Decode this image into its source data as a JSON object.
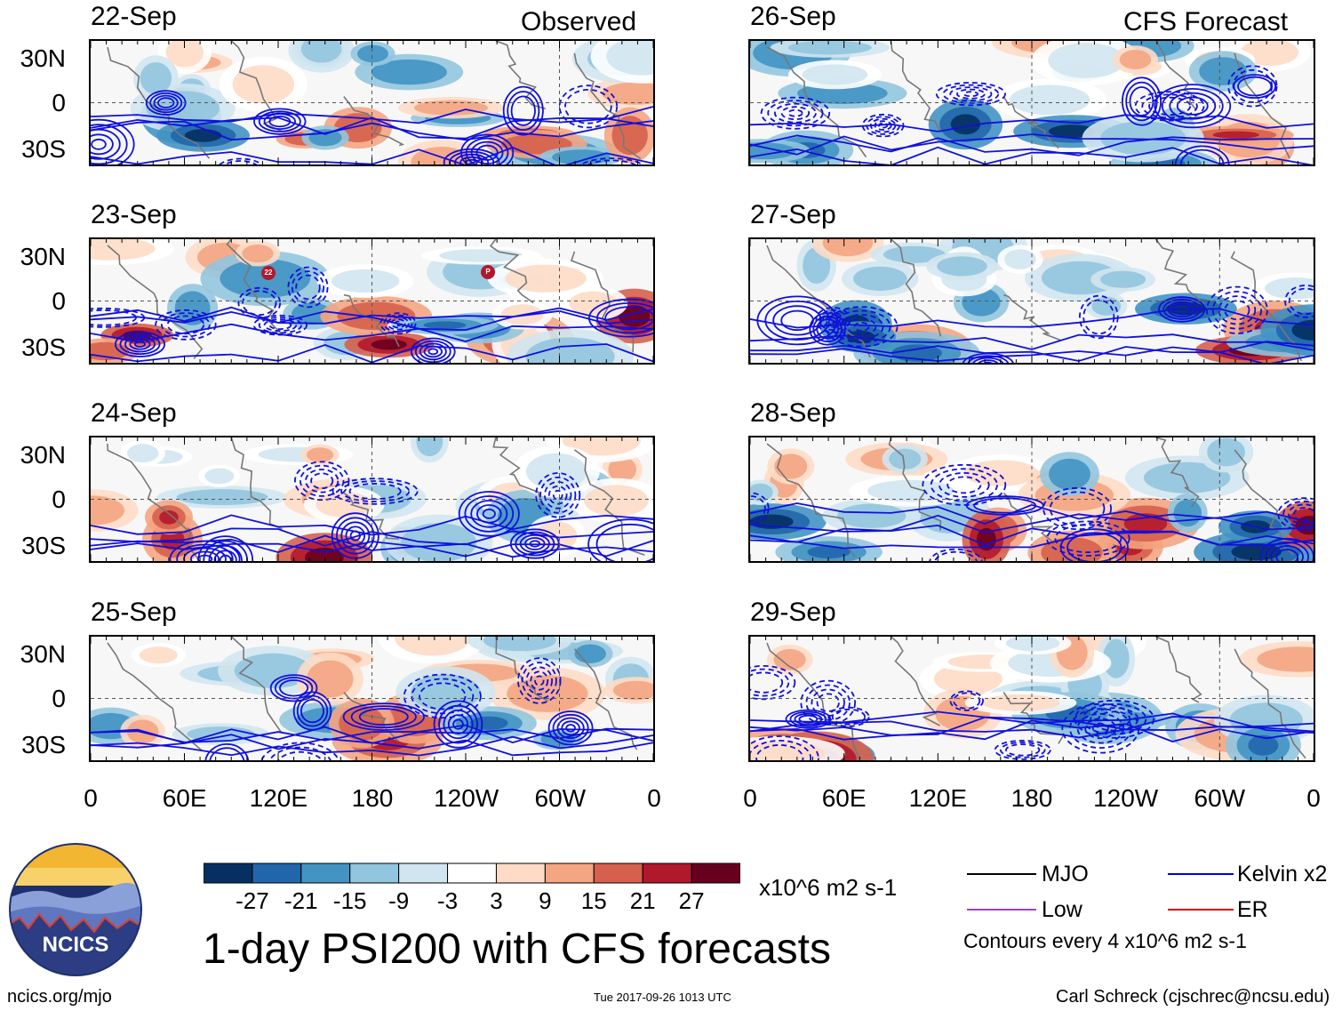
{
  "header": {
    "left": "Observed",
    "right": "CFS Forecast"
  },
  "panels": [
    {
      "date": "22-Sep",
      "group": "observed"
    },
    {
      "date": "23-Sep",
      "group": "observed"
    },
    {
      "date": "24-Sep",
      "group": "observed"
    },
    {
      "date": "25-Sep",
      "group": "observed"
    },
    {
      "date": "26-Sep",
      "group": "forecast"
    },
    {
      "date": "27-Sep",
      "group": "forecast"
    },
    {
      "date": "28-Sep",
      "group": "forecast"
    },
    {
      "date": "29-Sep",
      "group": "forecast"
    }
  ],
  "lat_labels": [
    "30N",
    "0",
    "30S"
  ],
  "lon_labels": [
    "0",
    "60E",
    "120E",
    "180",
    "120W",
    "60W",
    "0"
  ],
  "colorbar": {
    "colors": [
      "#053061",
      "#2166ac",
      "#4393c3",
      "#92c5de",
      "#d1e5f0",
      "#ffffff",
      "#fddbc7",
      "#f4a582",
      "#d6604d",
      "#b2182b",
      "#67001f"
    ],
    "labels": [
      "-27",
      "-21",
      "-15",
      "-9",
      "-3",
      "3",
      "9",
      "15",
      "21",
      "27"
    ],
    "units": "x10^6 m2 s-1"
  },
  "legend": {
    "items": [
      {
        "label": "MJO",
        "color": "#000000"
      },
      {
        "label": "Kelvin x2",
        "color": "#0000dd"
      },
      {
        "label": "Low",
        "color": "#a040d0"
      },
      {
        "label": "ER",
        "color": "#dd0000"
      }
    ],
    "note": "Contours every 4 x10^6 m2 s-1"
  },
  "logo": {
    "text": "NCICS"
  },
  "title": "1-day PSI200 with CFS forecasts",
  "footer": {
    "left": "ncics.org/mjo",
    "center": "Tue 2017-09-26 1013 UTC",
    "right": "Carl Schreck (cjschrec@ncsu.edu)"
  },
  "chart_data": {
    "type": "heatmap",
    "title": "1-day PSI200 with CFS forecasts",
    "variable": "200-hPa streamfunction anomaly (PSI200)",
    "units": "x10^6 m2 s-1",
    "color_levels": [
      -27,
      -21,
      -15,
      -9,
      -3,
      3,
      9,
      15,
      21,
      27
    ],
    "contour_interval": 4,
    "x_ticks": [
      "0",
      "60E",
      "120E",
      "180",
      "120W",
      "60W",
      "0"
    ],
    "y_ticks": [
      "30N",
      "0",
      "30S"
    ],
    "xlim_deg_east": [
      0,
      360
    ],
    "ylim_deg": [
      -40,
      40
    ],
    "observed_dates": [
      "22-Sep",
      "23-Sep",
      "24-Sep",
      "25-Sep"
    ],
    "forecast_dates": [
      "26-Sep",
      "27-Sep",
      "28-Sep",
      "29-Sep"
    ],
    "contour_filters": [
      "MJO",
      "Kelvin x2",
      "Low",
      "ER"
    ],
    "tropical_cyclone_labels_23_Sep": [
      "22",
      "P"
    ]
  }
}
